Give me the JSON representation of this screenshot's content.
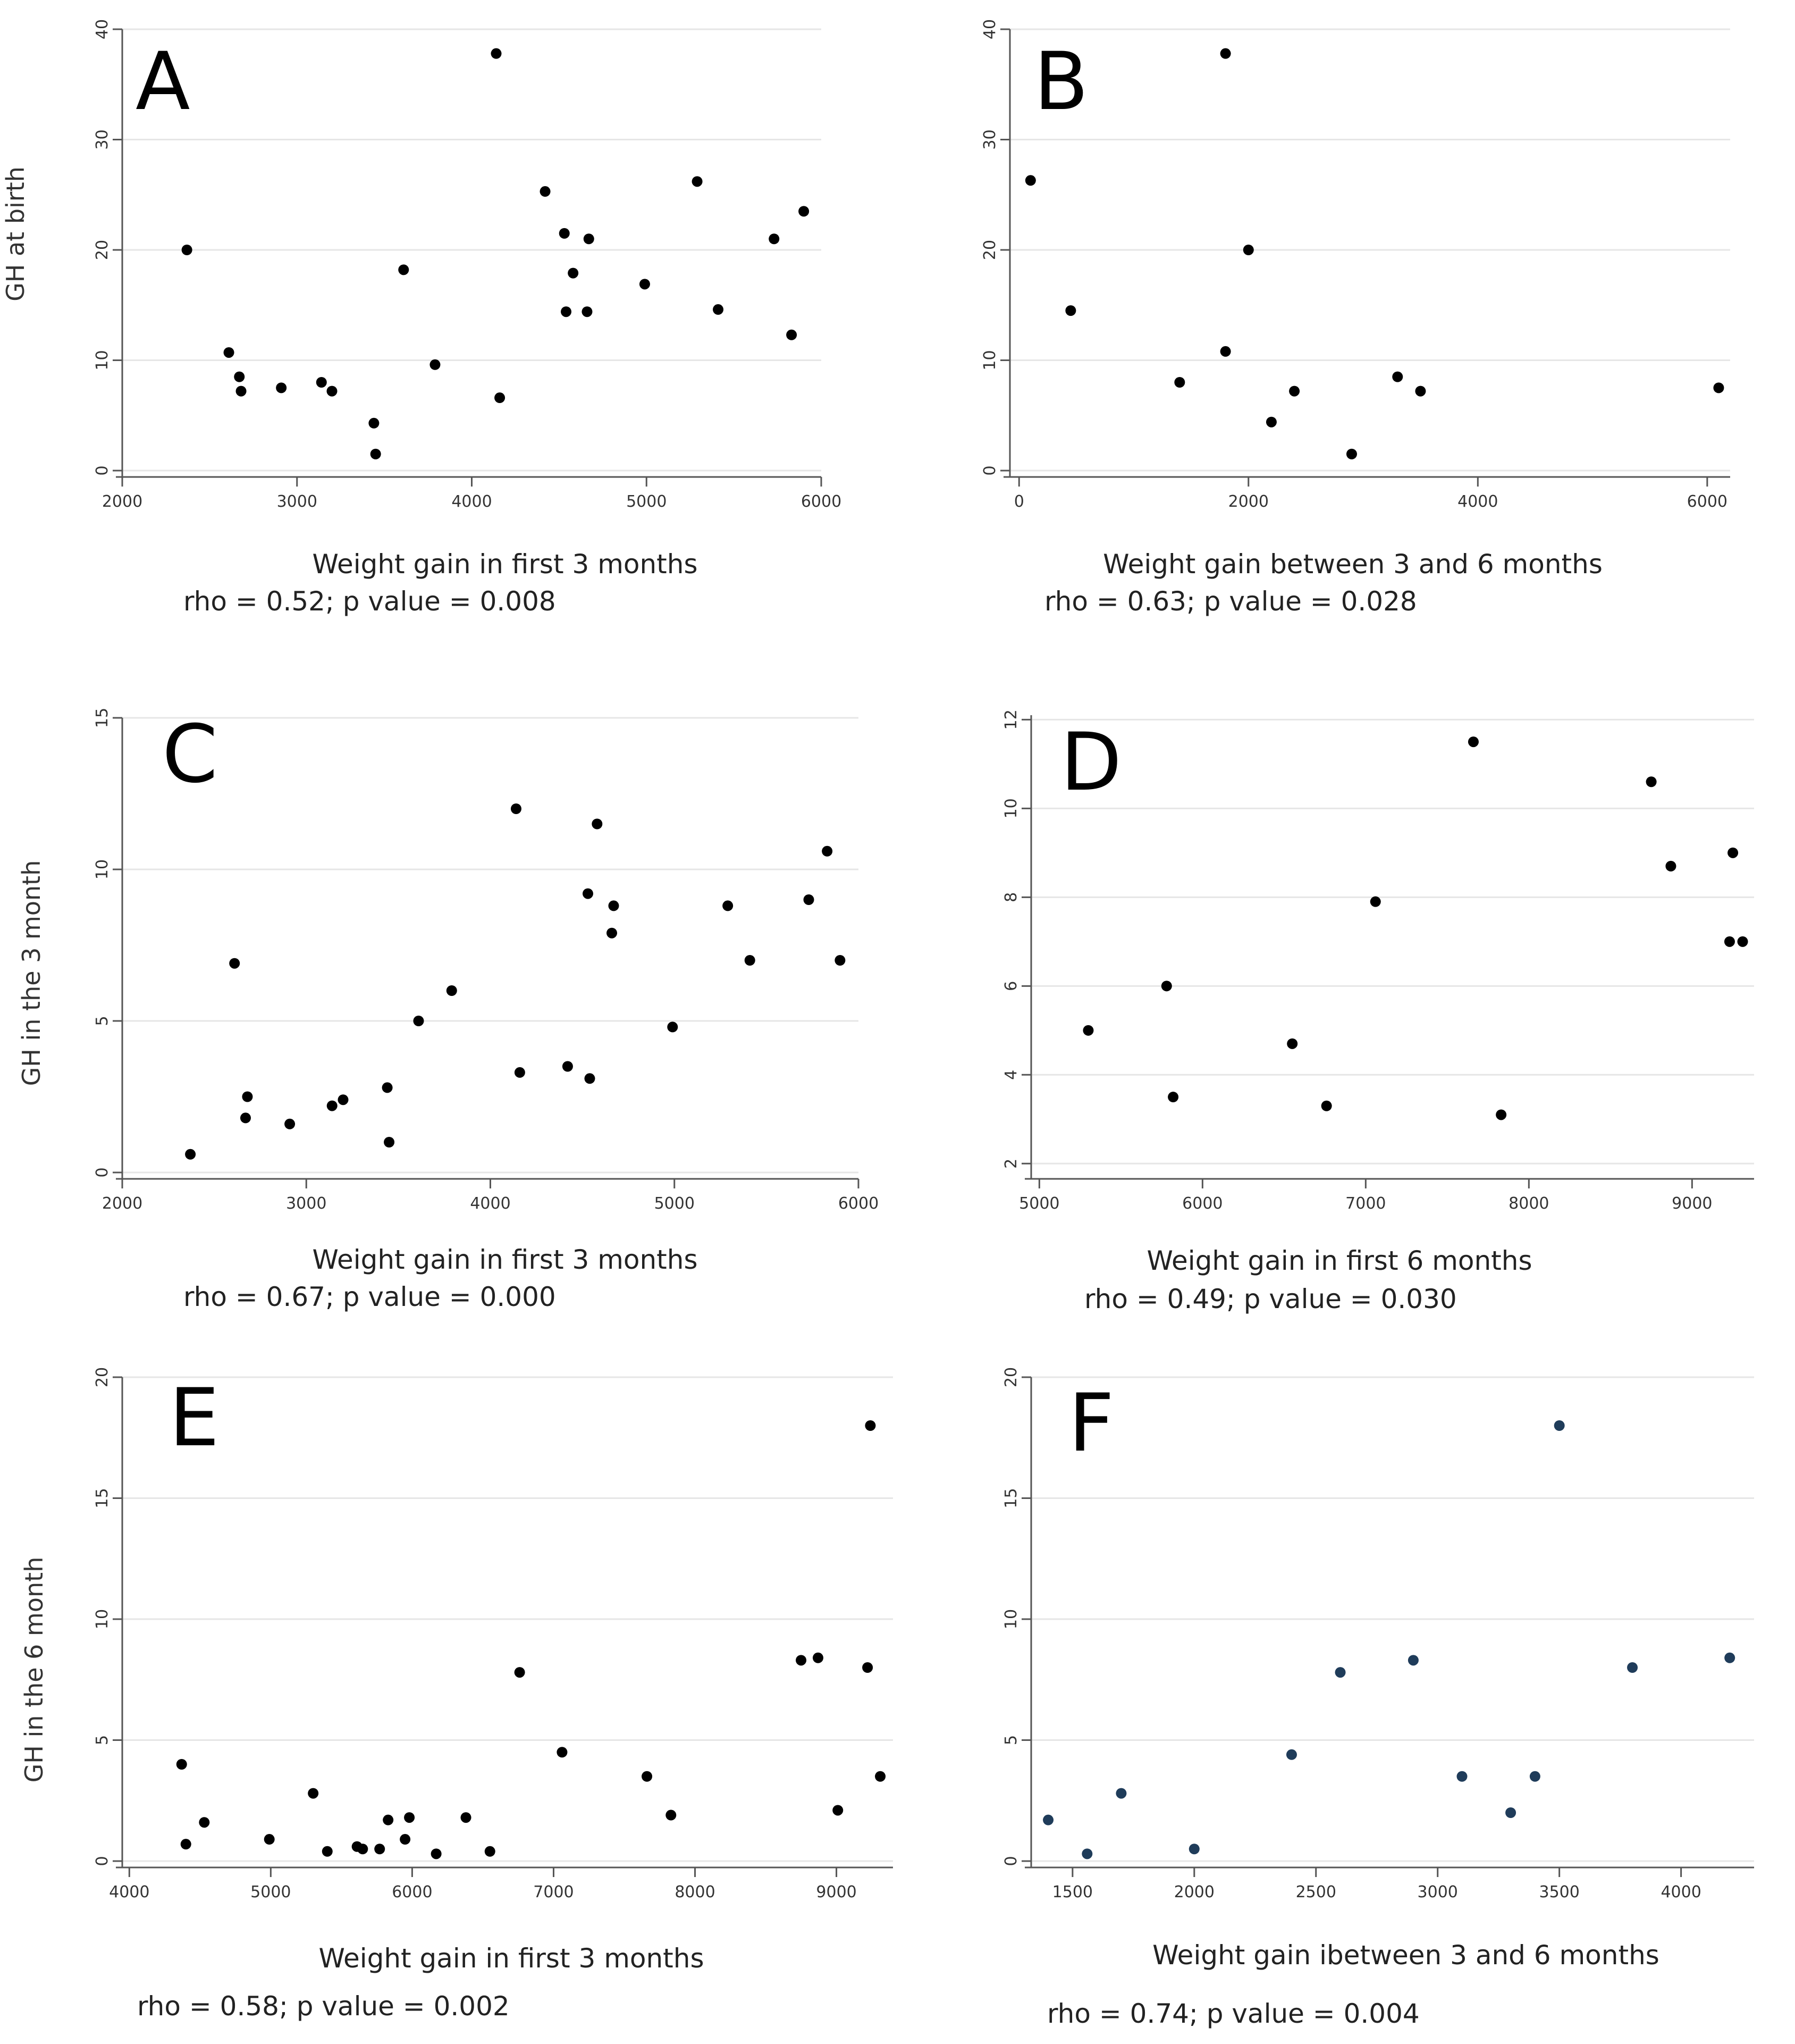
{
  "chart_data": [
    {
      "type": "scatter",
      "panel": "A",
      "ylabel": "GH at birth",
      "xlabel": "Weight gain in first 3 months",
      "stat": "rho = 0.52; p value = 0.008",
      "xlim": [
        2000,
        6000
      ],
      "ylim": [
        0,
        40
      ],
      "xticks": [
        2000,
        3000,
        4000,
        5000,
        6000
      ],
      "yticks": [
        0,
        10,
        20,
        30,
        40
      ],
      "marker_color": "#000000",
      "x": [
        2370,
        2610,
        2670,
        2680,
        2910,
        3140,
        3200,
        3440,
        3450,
        3610,
        3790,
        4140,
        4160,
        4420,
        4530,
        4540,
        4580,
        4660,
        4670,
        4990,
        5290,
        5410,
        5730,
        5830,
        5900
      ],
      "y": [
        20,
        10.7,
        8.5,
        7.2,
        7.5,
        8,
        7.2,
        4.3,
        1.5,
        18.2,
        9.6,
        37.8,
        6.6,
        25.3,
        21.5,
        14.4,
        17.9,
        14.4,
        21,
        16.9,
        26.2,
        14.6,
        21,
        12.3,
        23.5
      ]
    },
    {
      "type": "scatter",
      "panel": "B",
      "ylabel": "",
      "xlabel": "Weight gain between 3 and 6 months",
      "stat": "rho = 0.63; p value = 0.028",
      "xlim": [
        0,
        6200
      ],
      "ylim": [
        0,
        40
      ],
      "xticks": [
        0,
        2000,
        4000,
        6000
      ],
      "yticks": [
        0,
        10,
        20,
        30,
        40
      ],
      "marker_color": "#000000",
      "x": [
        100,
        450,
        1400,
        1800,
        1800,
        2000,
        2200,
        2400,
        2900,
        3300,
        3500,
        6100
      ],
      "y": [
        26.3,
        14.5,
        8,
        37.8,
        10.8,
        20,
        4.4,
        7.2,
        1.5,
        8.5,
        7.2,
        7.5
      ]
    },
    {
      "type": "scatter",
      "panel": "C",
      "ylabel": "GH in the 3 month",
      "xlabel": "Weight gain in first 3 months",
      "stat": "rho = 0.67; p value = 0.000",
      "xlim": [
        2000,
        6000
      ],
      "ylim": [
        0,
        15
      ],
      "xticks": [
        2000,
        3000,
        4000,
        5000,
        6000
      ],
      "yticks": [
        0,
        5,
        10,
        15
      ],
      "marker_color": "#000000",
      "x": [
        2370,
        2610,
        2670,
        2680,
        2910,
        3140,
        3200,
        3440,
        3450,
        3610,
        3790,
        4140,
        4160,
        4420,
        4530,
        4540,
        4580,
        4660,
        4670,
        4990,
        5290,
        5410,
        5730,
        5830,
        5900
      ],
      "y": [
        0.6,
        6.9,
        1.8,
        2.5,
        1.6,
        2.2,
        2.4,
        2.8,
        1,
        5,
        6,
        12,
        3.3,
        3.5,
        9.2,
        3.1,
        11.5,
        7.9,
        8.8,
        4.8,
        8.8,
        7,
        9,
        10.6,
        7
      ]
    },
    {
      "type": "scatter",
      "panel": "D",
      "ylabel": "",
      "xlabel": "Weight gain in first 6 months",
      "stat": "rho = 0.49; p value = 0.030",
      "xlim": [
        5000,
        9300
      ],
      "ylim": [
        2,
        12
      ],
      "xticks": [
        5000,
        6000,
        7000,
        8000,
        9000
      ],
      "yticks": [
        2,
        4,
        6,
        8,
        10,
        12
      ],
      "marker_color": "#000000",
      "x": [
        5300,
        5780,
        5820,
        6550,
        6760,
        7060,
        7660,
        7830,
        8750,
        8870,
        9230,
        9250,
        9310
      ],
      "y": [
        5,
        6,
        3.5,
        4.7,
        3.3,
        7.9,
        11.5,
        3.1,
        10.6,
        8.7,
        7,
        9,
        7
      ]
    },
    {
      "type": "scatter",
      "panel": "E",
      "ylabel": "GH in the 6 month",
      "xlabel": "Weight gain in first 3 months",
      "stat": "rho = 0.58; p value = 0.002",
      "xlim": [
        4000,
        9300
      ],
      "ylim": [
        0,
        20
      ],
      "xticks": [
        4000,
        5000,
        6000,
        7000,
        8000,
        9000
      ],
      "yticks": [
        0,
        5,
        10,
        15,
        20
      ],
      "marker_color": "#000000",
      "x": [
        4370,
        4400,
        4530,
        4990,
        5300,
        5400,
        5610,
        5650,
        5770,
        5830,
        5950,
        5980,
        6170,
        6380,
        6550,
        6760,
        7060,
        7660,
        7830,
        8750,
        8870,
        9010,
        9220,
        9240,
        9310
      ],
      "y": [
        4,
        0.7,
        1.6,
        0.9,
        2.8,
        0.4,
        0.6,
        0.5,
        0.5,
        1.7,
        0.9,
        1.8,
        0.3,
        1.8,
        0.4,
        7.8,
        4.5,
        3.5,
        1.9,
        8.3,
        8.4,
        2.1,
        8,
        18,
        3.5
      ]
    },
    {
      "type": "scatter",
      "panel": "F",
      "ylabel": "",
      "xlabel": "Weight gain ibetween 3 and 6 months",
      "stat": "rho = 0.74; p value = 0.004",
      "xlim": [
        1400,
        4200
      ],
      "ylim": [
        0,
        20
      ],
      "xticks": [
        1500,
        2000,
        2500,
        3000,
        3500,
        4000
      ],
      "yticks": [
        0,
        5,
        10,
        15,
        20
      ],
      "marker_color": "#1f3c5a",
      "x": [
        1400,
        1560,
        1700,
        2000,
        2400,
        2600,
        2900,
        3100,
        3300,
        3400,
        3500,
        3800,
        4200
      ],
      "y": [
        1.7,
        0.3,
        2.8,
        0.5,
        4.4,
        7.8,
        8.3,
        3.5,
        2,
        3.5,
        18,
        8,
        8.4
      ]
    }
  ]
}
